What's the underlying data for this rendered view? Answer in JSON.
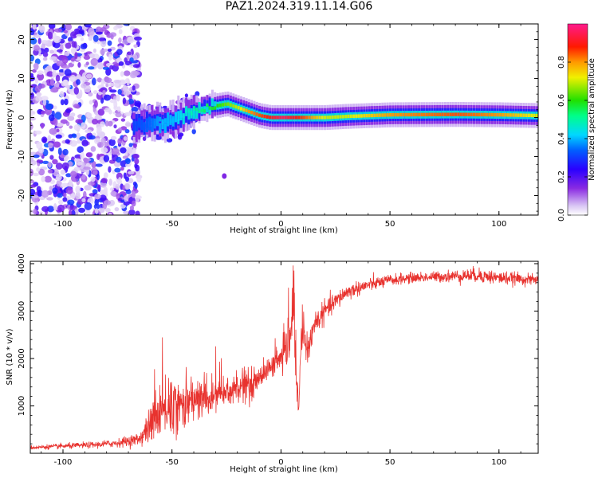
{
  "figure_title": "PAZ1.2024.319.11.14.G06",
  "colors": {
    "snr_line": "#e8322e",
    "background": "#ffffff",
    "axes": "#000000"
  },
  "chart_data": [
    {
      "type": "heatmap",
      "title": "PAZ1.2024.319.11.14.G06",
      "xlabel": "Height of straight line (km)",
      "ylabel": "Frequency (Hz)",
      "xlim": [
        -115,
        118
      ],
      "ylim": [
        -25,
        24
      ],
      "xticks": [
        -100,
        -50,
        0,
        50,
        100
      ],
      "xtick_labels": [
        "-100",
        "-50",
        "0",
        "50",
        "100"
      ],
      "yticks": [
        -20,
        -10,
        0,
        10,
        20
      ],
      "ytick_labels": [
        "-20",
        "-10",
        "0",
        "10",
        "20"
      ],
      "colorbar": {
        "label": "Normalized spectral amplitude",
        "range": [
          0,
          1
        ],
        "ticks": [
          0.0,
          0.2,
          0.4,
          0.6,
          0.8
        ],
        "tick_labels": [
          "0.0",
          "0.2",
          "0.4",
          "0.6",
          "0.8"
        ],
        "colormap": "rainbow (white-violet-blue-cyan-green-yellow-orange-red-magenta)"
      },
      "ridge": {
        "description": "dominant spectral peak frequency vs height",
        "height_km": [
          -70,
          -60,
          -55,
          -50,
          -45,
          -40,
          -35,
          -30,
          -25,
          -20,
          -15,
          -10,
          -5,
          0,
          5,
          10,
          20,
          30,
          50,
          80,
          100,
          118
        ],
        "frequency_hz": [
          -2,
          -1.5,
          -1,
          -0.5,
          0.5,
          1.5,
          2.5,
          3,
          3.5,
          2.5,
          1.5,
          0.5,
          0,
          0,
          0,
          0,
          0,
          0.3,
          0.7,
          0.8,
          0.7,
          0.5
        ],
        "amplitude": [
          0.3,
          0.35,
          0.4,
          0.4,
          0.45,
          0.5,
          0.55,
          0.6,
          0.65,
          0.7,
          0.8,
          0.85,
          0.9,
          0.95,
          0.9,
          0.85,
          0.7,
          0.7,
          0.8,
          0.85,
          0.8,
          0.7
        ]
      },
      "noise_region_km": [
        -115,
        -65
      ]
    },
    {
      "type": "line",
      "xlabel": "Height of straight line (km)",
      "ylabel": "SNR (10 * v/v)",
      "xlim": [
        -115,
        118
      ],
      "ylim": [
        0,
        4050
      ],
      "xticks": [
        -100,
        -50,
        0,
        50,
        100
      ],
      "xtick_labels": [
        "-100",
        "-50",
        "0",
        "50",
        "100"
      ],
      "yticks": [
        1000,
        2000,
        3000,
        4000
      ],
      "ytick_labels": [
        "1000",
        "2000",
        "3000",
        "4000"
      ],
      "series": [
        {
          "x": [
            -115,
            -100,
            -85,
            -75,
            -65,
            -60,
            -55,
            -50,
            -45,
            -40,
            -35,
            -30,
            -25,
            -20,
            -15,
            -10,
            -5,
            0,
            3,
            5,
            6,
            7,
            8,
            9,
            10,
            12,
            15,
            20,
            25,
            30,
            40,
            50,
            60,
            70,
            80,
            90,
            100,
            110,
            118
          ],
          "y": [
            120,
            150,
            180,
            220,
            300,
            600,
            900,
            1000,
            1050,
            1100,
            1150,
            1200,
            1300,
            1350,
            1400,
            1600,
            1800,
            2000,
            2200,
            2600,
            3200,
            1500,
            900,
            1800,
            2500,
            2100,
            2700,
            3000,
            3200,
            3400,
            3550,
            3650,
            3700,
            3720,
            3740,
            3760,
            3700,
            3680,
            3650
          ],
          "noise_amplitude": [
            40,
            50,
            60,
            80,
            120,
            350,
            500,
            550,
            500,
            450,
            400,
            380,
            350,
            330,
            300,
            250,
            200,
            250,
            400,
            500,
            600,
            800,
            400,
            400,
            350,
            300,
            250,
            200,
            180,
            150,
            130,
            110,
            100,
            100,
            120,
            140,
            130,
            110,
            100
          ]
        }
      ]
    }
  ]
}
